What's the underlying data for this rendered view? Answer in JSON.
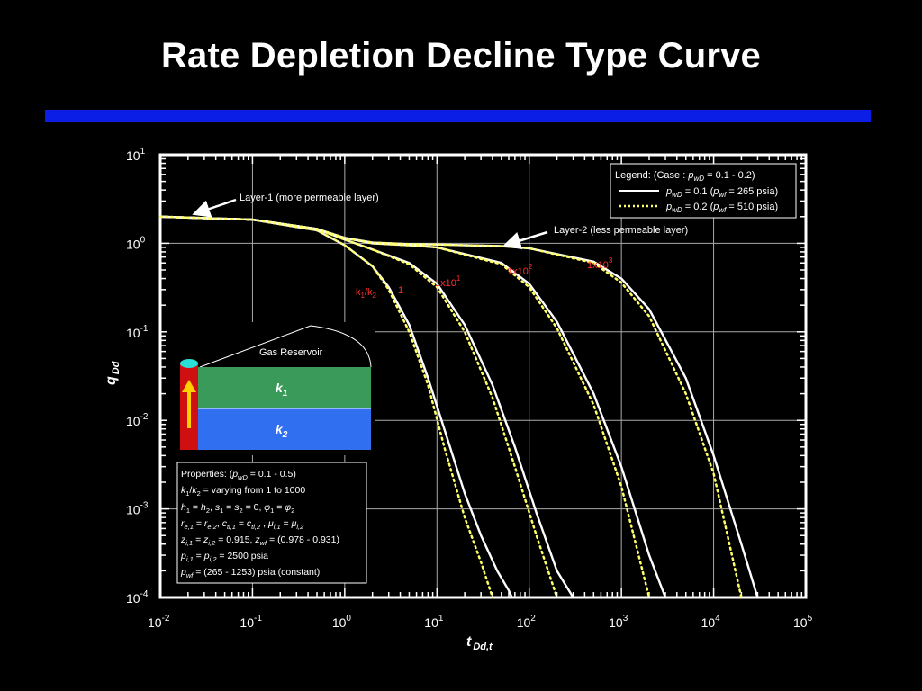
{
  "slide": {
    "title": "Rate Depletion Decline Type Curve"
  },
  "colors": {
    "background": "#000000",
    "title_bar": "#0a1ee6",
    "pwd01_line": "#ffffff",
    "pwd02_line": "#ffff66",
    "ratio_label": "#ff3030",
    "k1_layer": "#3a9a5a",
    "k2_layer": "#2f6ff0",
    "well": "#d01010",
    "arrow": "#ffd000"
  },
  "chart_data": {
    "type": "line",
    "title": "",
    "xlabel": {
      "main": "t",
      "sub": "Dd,t"
    },
    "ylabel": {
      "main": "q",
      "sub": "Dd"
    },
    "x_scale": "log",
    "y_scale": "log",
    "xlim": [
      0.01,
      100000
    ],
    "ylim": [
      0.0001,
      10
    ],
    "grid": true,
    "x_ticks": [
      "10^-2",
      "10^-1",
      "10^0",
      "10^1",
      "10^2",
      "10^3",
      "10^4",
      "10^5"
    ],
    "y_ticks": [
      "10^1",
      "10^0",
      "10^-1",
      "10^-2",
      "10^-3",
      "10^-4"
    ],
    "legend": {
      "position": "top-right",
      "header": "Legend: (Case : pwD = 0.1 - 0.2)",
      "entries": [
        {
          "name": "pwD = 0.1 (pwf = 265 psia)",
          "color": "#ffffff",
          "style": "solid"
        },
        {
          "name": "pwD = 0.2 (pwf = 510 psia)",
          "color": "#ffff66",
          "style": "dotted"
        }
      ]
    },
    "series": [
      {
        "k1_k2": "1",
        "pwD": 0.1,
        "x": [
          0.01,
          0.1,
          0.5,
          1,
          2,
          3,
          5,
          8,
          12,
          20,
          30,
          45,
          60,
          65
        ],
        "y": [
          2.0,
          1.85,
          1.4,
          0.95,
          0.55,
          0.32,
          0.12,
          0.03,
          0.008,
          0.0015,
          0.0005,
          0.0002,
          0.00012,
          0.0001
        ]
      },
      {
        "k1_k2": "1",
        "pwD": 0.2,
        "x": [
          0.01,
          0.1,
          0.5,
          1,
          2,
          3,
          5,
          8,
          12,
          20,
          30,
          40
        ],
        "y": [
          2.0,
          1.85,
          1.4,
          0.95,
          0.55,
          0.3,
          0.1,
          0.025,
          0.005,
          0.0008,
          0.00025,
          0.0001
        ]
      },
      {
        "k1_k2": "1x10^1",
        "pwD": 0.1,
        "x": [
          0.01,
          0.1,
          0.5,
          1,
          2,
          5,
          10,
          20,
          40,
          70,
          120,
          200,
          300
        ],
        "y": [
          2.0,
          1.85,
          1.45,
          1.1,
          0.85,
          0.6,
          0.35,
          0.12,
          0.025,
          0.005,
          0.0009,
          0.0002,
          0.0001
        ]
      },
      {
        "k1_k2": "1x10^1",
        "pwD": 0.2,
        "x": [
          0.01,
          0.1,
          0.5,
          1,
          2,
          5,
          10,
          20,
          40,
          70,
          120,
          200
        ],
        "y": [
          2.0,
          1.85,
          1.45,
          1.1,
          0.85,
          0.58,
          0.32,
          0.1,
          0.018,
          0.003,
          0.0005,
          0.0001
        ]
      },
      {
        "k1_k2": "1x10^2",
        "pwD": 0.1,
        "x": [
          0.01,
          0.1,
          0.5,
          1,
          2,
          5,
          10,
          50,
          100,
          200,
          500,
          1000,
          2000,
          3000
        ],
        "y": [
          2.0,
          1.85,
          1.45,
          1.15,
          1.0,
          0.95,
          0.9,
          0.6,
          0.35,
          0.13,
          0.02,
          0.003,
          0.0003,
          0.0001
        ]
      },
      {
        "k1_k2": "1x10^2",
        "pwD": 0.2,
        "x": [
          0.01,
          0.1,
          0.5,
          1,
          2,
          5,
          10,
          50,
          100,
          200,
          500,
          1000,
          2000
        ],
        "y": [
          2.0,
          1.85,
          1.45,
          1.15,
          1.0,
          0.95,
          0.9,
          0.58,
          0.32,
          0.11,
          0.015,
          0.0018,
          0.0001
        ]
      },
      {
        "k1_k2": "1x10^3",
        "pwD": 0.1,
        "x": [
          0.01,
          0.1,
          0.5,
          1,
          2,
          5,
          10,
          50,
          100,
          500,
          1000,
          2000,
          5000,
          10000,
          20000,
          30000
        ],
        "y": [
          2.0,
          1.85,
          1.45,
          1.15,
          1.02,
          0.98,
          0.97,
          0.93,
          0.88,
          0.62,
          0.4,
          0.18,
          0.03,
          0.004,
          0.0004,
          0.0001
        ]
      },
      {
        "k1_k2": "1x10^3",
        "pwD": 0.2,
        "x": [
          0.01,
          0.1,
          0.5,
          1,
          2,
          5,
          10,
          50,
          100,
          500,
          1000,
          2000,
          5000,
          10000,
          20000
        ],
        "y": [
          2.0,
          1.85,
          1.45,
          1.15,
          1.02,
          0.98,
          0.97,
          0.93,
          0.88,
          0.6,
          0.36,
          0.15,
          0.02,
          0.0025,
          0.0001
        ]
      }
    ],
    "annotations": {
      "layer1": "Layer-1 (more permeable layer)",
      "layer2": "Layer-2 (less permeable layer)",
      "ratio_header": "k1/k2",
      "ratios": [
        "1",
        "1x10^1",
        "1x10^2",
        "1x10^3"
      ],
      "reservoir_title": "Gas Reservoir",
      "k1": "k1",
      "k2": "k2"
    },
    "properties": [
      "Properties: (pwD = 0.1 - 0.5)",
      "k1/k2 = varying from 1 to 1000",
      "h1 = h2, s1 = s2 = 0, φ1 = φ2",
      "re,1 = re,2, cti,1 = cti,2 , μi,1 = μi,2",
      "zi,1 = zi,2 = 0.915, zwf = (0.978 - 0.931)",
      "pi,1 = pi,2 = 2500 psia",
      "pwf = (265 - 1253) psia (constant)"
    ]
  }
}
